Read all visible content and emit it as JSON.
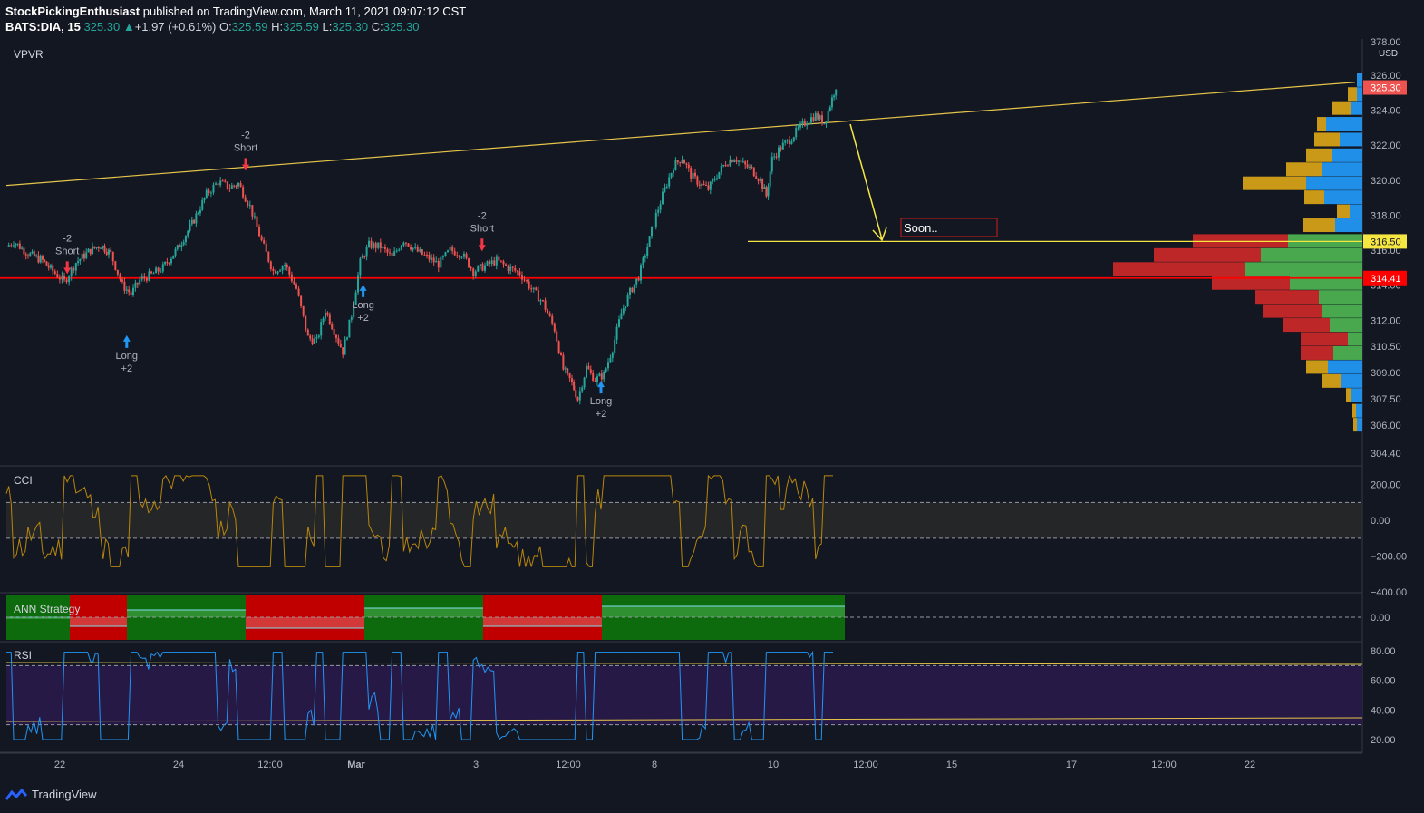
{
  "header": {
    "author": "StockPickingEnthusiast",
    "published_text": "published on TradingView.com, March 11, 2021 09:07:12 CST",
    "symbol": "BATS:DIA, 15",
    "last": "325.30",
    "change_arrow": "▲",
    "change": "+1.97 (+0.61%)",
    "o_label": "O:",
    "o_value": "325.59",
    "h_label": "H:",
    "h_value": "325.59",
    "l_label": "L:",
    "l_value": "325.30",
    "c_label": "C:",
    "c_value": "325.30"
  },
  "footer": {
    "brand": "TradingView",
    "icon": "tradingview-logo-icon"
  },
  "colors": {
    "background": "#131722",
    "up": "#26a69a",
    "down": "#ef5350",
    "support": "#ff0000",
    "trendline": "#e5c44a",
    "cci_line": "#b8860b",
    "rsi_line": "#2196f3",
    "ann_green": "#0d6b0d",
    "ann_red": "#c00000",
    "vp_up": "#4caf50",
    "vp_down": "#c62828",
    "vp_va_up": "#2196f3",
    "vp_va_down": "#d4a017"
  },
  "chart_data": [
    {
      "type": "candlestick",
      "pane": "price",
      "indicator": "VPVR",
      "currency": "USD",
      "x_ticks": [
        "22",
        "24",
        "12:00",
        "Mar",
        "3",
        "12:00",
        "8",
        "10",
        "12:00",
        "15",
        "17",
        "12:00",
        "22"
      ],
      "y_ticks": [
        "326.00",
        "324.00",
        "322.00",
        "320.00",
        "318.00",
        "316.00",
        "314.00",
        "312.00",
        "310.50",
        "309.00",
        "307.50",
        "306.00",
        "304.40"
      ],
      "y_top_tick": "378.00",
      "ylim": [
        304,
        326.5
      ],
      "price_path": [
        {
          "t": 0,
          "p": 316.2
        },
        {
          "t": 5,
          "p": 316.5
        },
        {
          "t": 15,
          "p": 315.8
        },
        {
          "t": 25,
          "p": 315.4
        },
        {
          "t": 32,
          "p": 314.8
        },
        {
          "t": 40,
          "p": 314.2
        },
        {
          "t": 48,
          "p": 315.3
        },
        {
          "t": 58,
          "p": 316.0
        },
        {
          "t": 65,
          "p": 316.3
        },
        {
          "t": 72,
          "p": 315.8
        },
        {
          "t": 80,
          "p": 314.0
        },
        {
          "t": 86,
          "p": 313.5
        },
        {
          "t": 92,
          "p": 314.3
        },
        {
          "t": 100,
          "p": 314.6
        },
        {
          "t": 108,
          "p": 315.0
        },
        {
          "t": 118,
          "p": 316.1
        },
        {
          "t": 128,
          "p": 317.5
        },
        {
          "t": 138,
          "p": 319.2
        },
        {
          "t": 146,
          "p": 319.9
        },
        {
          "t": 154,
          "p": 319.6
        },
        {
          "t": 160,
          "p": 319.8
        },
        {
          "t": 168,
          "p": 318.5
        },
        {
          "t": 176,
          "p": 316.5
        },
        {
          "t": 184,
          "p": 314.8
        },
        {
          "t": 192,
          "p": 315.2
        },
        {
          "t": 200,
          "p": 313.8
        },
        {
          "t": 208,
          "p": 311.0
        },
        {
          "t": 214,
          "p": 310.8
        },
        {
          "t": 220,
          "p": 312.6
        },
        {
          "t": 226,
          "p": 311.4
        },
        {
          "t": 232,
          "p": 310.2
        },
        {
          "t": 238,
          "p": 312.3
        },
        {
          "t": 244,
          "p": 315.3
        },
        {
          "t": 250,
          "p": 316.3
        },
        {
          "t": 258,
          "p": 316.2
        },
        {
          "t": 266,
          "p": 315.6
        },
        {
          "t": 274,
          "p": 316.6
        },
        {
          "t": 282,
          "p": 316.0
        },
        {
          "t": 290,
          "p": 315.6
        },
        {
          "t": 298,
          "p": 315.2
        },
        {
          "t": 306,
          "p": 316.0
        },
        {
          "t": 314,
          "p": 315.8
        },
        {
          "t": 322,
          "p": 314.8
        },
        {
          "t": 330,
          "p": 315.1
        },
        {
          "t": 338,
          "p": 315.4
        },
        {
          "t": 346,
          "p": 315.0
        },
        {
          "t": 354,
          "p": 314.7
        },
        {
          "t": 362,
          "p": 313.8
        },
        {
          "t": 370,
          "p": 313.0
        },
        {
          "t": 378,
          "p": 311.5
        },
        {
          "t": 384,
          "p": 309.2
        },
        {
          "t": 390,
          "p": 308.4
        },
        {
          "t": 394,
          "p": 307.5
        },
        {
          "t": 400,
          "p": 309.3
        },
        {
          "t": 406,
          "p": 308.6
        },
        {
          "t": 412,
          "p": 308.9
        },
        {
          "t": 418,
          "p": 310.4
        },
        {
          "t": 424,
          "p": 312.4
        },
        {
          "t": 430,
          "p": 313.6
        },
        {
          "t": 436,
          "p": 314.5
        },
        {
          "t": 442,
          "p": 316.2
        },
        {
          "t": 448,
          "p": 318.0
        },
        {
          "t": 454,
          "p": 319.5
        },
        {
          "t": 460,
          "p": 320.8
        },
        {
          "t": 466,
          "p": 321.3
        },
        {
          "t": 472,
          "p": 320.3
        },
        {
          "t": 478,
          "p": 319.8
        },
        {
          "t": 484,
          "p": 319.5
        },
        {
          "t": 490,
          "p": 320.3
        },
        {
          "t": 496,
          "p": 321.0
        },
        {
          "t": 502,
          "p": 321.3
        },
        {
          "t": 508,
          "p": 320.9
        },
        {
          "t": 514,
          "p": 320.6
        },
        {
          "t": 520,
          "p": 320.0
        },
        {
          "t": 524,
          "p": 319.1
        },
        {
          "t": 528,
          "p": 321.2
        },
        {
          "t": 534,
          "p": 321.9
        },
        {
          "t": 540,
          "p": 322.3
        },
        {
          "t": 546,
          "p": 322.9
        },
        {
          "t": 552,
          "p": 323.4
        },
        {
          "t": 558,
          "p": 323.7
        },
        {
          "t": 564,
          "p": 323.3
        },
        {
          "t": 568,
          "p": 324.3
        },
        {
          "t": 572,
          "p": 325.4
        }
      ],
      "trendline": {
        "from": {
          "t": 0,
          "p": 319.7
        },
        "to": {
          "t": 930,
          "p": 325.6
        }
      },
      "support_level": 314.41,
      "target_level": 316.5,
      "annotations": [
        {
          "text": "-2\nShort",
          "t": 42,
          "p": 316.5
        },
        {
          "text": "-2\nShort",
          "t": 165,
          "p": 322.4
        },
        {
          "text": "-2\nShort",
          "t": 328,
          "p": 317.8
        },
        {
          "text": "Long\n+2",
          "t": 83,
          "p": 310.0
        },
        {
          "text": "Long\n+2",
          "t": 246,
          "p": 312.9
        },
        {
          "text": "Long\n+2",
          "t": 410,
          "p": 307.4
        }
      ],
      "arrow_note": "Soon..",
      "price_labels": [
        {
          "text": "325.30",
          "p": 325.3,
          "color": "#ef5350"
        },
        {
          "text": "316.50",
          "p": 316.5,
          "color": "#f5e642"
        },
        {
          "text": "314.41",
          "p": 314.41,
          "color": "#ff0000"
        }
      ],
      "volume_profile": [
        {
          "p": 325.7,
          "up": 6,
          "down": 0
        },
        {
          "p": 324.9,
          "up": 6,
          "down": 10
        },
        {
          "p": 324.1,
          "up": 12,
          "down": 22
        },
        {
          "p": 323.2,
          "up": 40,
          "down": 10
        },
        {
          "p": 322.3,
          "up": 25,
          "down": 28
        },
        {
          "p": 321.4,
          "up": 34,
          "down": 28
        },
        {
          "p": 320.6,
          "up": 44,
          "down": 40
        },
        {
          "p": 319.8,
          "up": 62,
          "down": 70
        },
        {
          "p": 319.0,
          "up": 42,
          "down": 22
        },
        {
          "p": 318.2,
          "up": 14,
          "down": 14
        },
        {
          "p": 317.4,
          "up": 30,
          "down": 35
        },
        {
          "p": 316.5,
          "up": 82,
          "down": 105
        },
        {
          "p": 315.7,
          "up": 112,
          "down": 118
        },
        {
          "p": 314.9,
          "up": 130,
          "down": 145
        },
        {
          "p": 314.1,
          "up": 80,
          "down": 86
        },
        {
          "p": 313.3,
          "up": 48,
          "down": 70
        },
        {
          "p": 312.5,
          "up": 45,
          "down": 65
        },
        {
          "p": 311.7,
          "up": 36,
          "down": 52
        },
        {
          "p": 310.9,
          "up": 16,
          "down": 52
        },
        {
          "p": 310.1,
          "up": 32,
          "down": 36
        },
        {
          "p": 309.3,
          "up": 38,
          "down": 24
        },
        {
          "p": 308.5,
          "up": 24,
          "down": 20
        },
        {
          "p": 307.7,
          "up": 12,
          "down": 6
        },
        {
          "p": 306.8,
          "up": 7,
          "down": 4
        },
        {
          "p": 306.0,
          "up": 6,
          "down": 4
        }
      ]
    },
    {
      "type": "line",
      "pane": "cci",
      "title": "CCI",
      "y_ticks": [
        "200.00",
        "0.00",
        "−200.00",
        "−400.00"
      ],
      "ylim": [
        -400,
        300
      ],
      "bands": [
        100,
        -100
      ]
    },
    {
      "type": "area",
      "pane": "ann",
      "title": "ANN Strategy",
      "y_ticks": [
        "0.00"
      ],
      "segments": [
        {
          "from": 0,
          "to": 70,
          "color": "green",
          "level": 0.0
        },
        {
          "from": 70,
          "to": 133,
          "color": "red",
          "level": -0.5
        },
        {
          "from": 133,
          "to": 264,
          "color": "green",
          "level": 0.4
        },
        {
          "from": 264,
          "to": 395,
          "color": "red",
          "level": -0.6
        },
        {
          "from": 395,
          "to": 526,
          "color": "green",
          "level": 0.5
        },
        {
          "from": 526,
          "to": 657,
          "color": "red",
          "level": -0.5
        },
        {
          "from": 657,
          "to": 925,
          "color": "green",
          "level": 0.6
        }
      ]
    },
    {
      "type": "line",
      "pane": "rsi",
      "title": "RSI",
      "y_ticks": [
        "80.00",
        "60.00",
        "40.00",
        "20.00"
      ],
      "ylim": [
        15,
        85
      ],
      "bands": [
        70,
        30
      ]
    }
  ]
}
